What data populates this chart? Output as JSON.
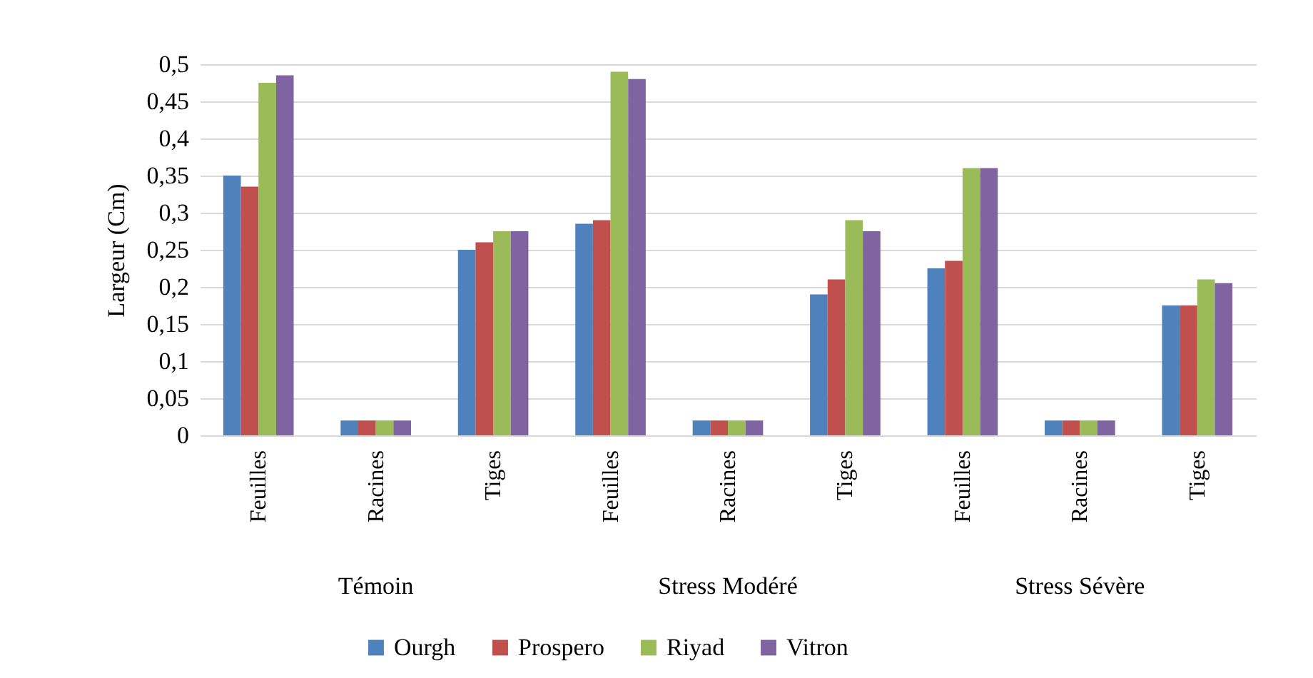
{
  "chart_data": {
    "type": "bar",
    "ylabel": "Largeur (Cm)",
    "categories": [
      "Feuilles",
      "Racines",
      "Tiges",
      "Feuilles",
      "Racines",
      "Tiges",
      "Feuilles",
      "Racines",
      "Tiges"
    ],
    "annotations": [
      "Témoin",
      "Stress Modéré",
      "Stress Sévère"
    ],
    "series": [
      {
        "name": "Ourgh",
        "color": "#4f81bd",
        "values": [
          0.35,
          0.02,
          0.25,
          0.285,
          0.02,
          0.19,
          0.225,
          0.02,
          0.175
        ]
      },
      {
        "name": "Prospero",
        "color": "#c0504d",
        "values": [
          0.335,
          0.02,
          0.26,
          0.29,
          0.02,
          0.21,
          0.235,
          0.02,
          0.175
        ]
      },
      {
        "name": "Riyad",
        "color": "#9bbb59",
        "values": [
          0.475,
          0.02,
          0.275,
          0.49,
          0.02,
          0.29,
          0.36,
          0.02,
          0.21
        ]
      },
      {
        "name": "Vitron",
        "color": "#8064a2",
        "values": [
          0.485,
          0.02,
          0.275,
          0.48,
          0.02,
          0.275,
          0.36,
          0.02,
          0.205
        ]
      }
    ],
    "ylim": [
      0,
      0.5
    ],
    "yticks": [
      {
        "value": 0,
        "label": "0"
      },
      {
        "value": 0.05,
        "label": "0,05"
      },
      {
        "value": 0.1,
        "label": "0,1"
      },
      {
        "value": 0.15,
        "label": "0,15"
      },
      {
        "value": 0.2,
        "label": "0,2"
      },
      {
        "value": 0.25,
        "label": "0,25"
      },
      {
        "value": 0.3,
        "label": "0,3"
      },
      {
        "value": 0.35,
        "label": "0,35"
      },
      {
        "value": 0.4,
        "label": "0,4"
      },
      {
        "value": 0.45,
        "label": "0,45"
      },
      {
        "value": 0.5,
        "label": "0,5"
      }
    ],
    "grid": true,
    "legend": "bottom"
  }
}
